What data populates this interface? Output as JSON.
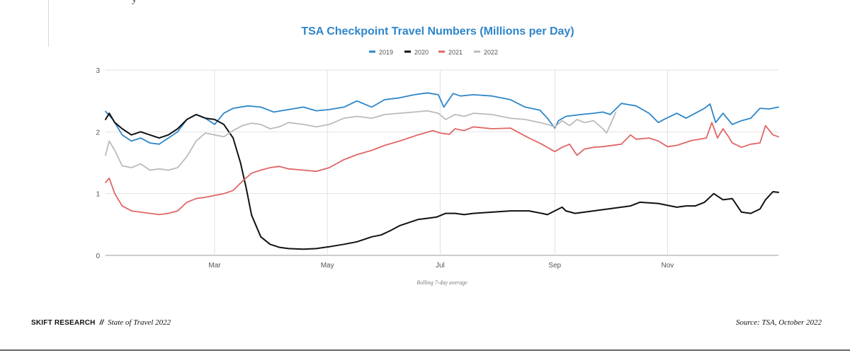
{
  "header": {
    "glyph": "y"
  },
  "chart_data": {
    "type": "line",
    "title": "TSA Checkpoint Travel Numbers (Millions per Day)",
    "note": "Rolling 7-day average",
    "ylim": [
      0,
      3
    ],
    "y_ticks": [
      "0",
      "1",
      "2",
      "3"
    ],
    "x_ticks": [
      {
        "label": "Mar",
        "day": 60
      },
      {
        "label": "May",
        "day": 121
      },
      {
        "label": "Jul",
        "day": 182
      },
      {
        "label": "Sep",
        "day": 244
      },
      {
        "label": "Nov",
        "day": 305
      }
    ],
    "x_unit": "day of year",
    "xlim": [
      1,
      365
    ],
    "grid": true,
    "legend_position": "top",
    "series": [
      {
        "name": "2019",
        "color": "#2d86c9",
        "x": [
          1,
          5,
          10,
          15,
          20,
          25,
          30,
          35,
          40,
          45,
          50,
          55,
          60,
          65,
          70,
          78,
          85,
          92,
          100,
          108,
          115,
          122,
          130,
          137,
          145,
          152,
          160,
          168,
          175,
          181,
          184,
          189,
          193,
          200,
          210,
          220,
          228,
          236,
          240,
          244,
          246,
          250,
          258,
          265,
          270,
          274,
          280,
          288,
          295,
          300,
          303,
          310,
          315,
          320,
          325,
          328,
          331,
          335,
          340,
          345,
          350,
          355,
          360,
          365
        ],
        "values": [
          2.33,
          2.2,
          1.95,
          1.85,
          1.9,
          1.82,
          1.8,
          1.9,
          2.0,
          2.2,
          2.28,
          2.22,
          2.12,
          2.3,
          2.38,
          2.42,
          2.4,
          2.32,
          2.36,
          2.4,
          2.34,
          2.36,
          2.4,
          2.5,
          2.4,
          2.52,
          2.55,
          2.6,
          2.63,
          2.6,
          2.4,
          2.62,
          2.58,
          2.6,
          2.58,
          2.52,
          2.4,
          2.35,
          2.22,
          2.06,
          2.18,
          2.25,
          2.28,
          2.3,
          2.32,
          2.28,
          2.46,
          2.42,
          2.3,
          2.15,
          2.2,
          2.3,
          2.22,
          2.3,
          2.38,
          2.45,
          2.15,
          2.3,
          2.12,
          2.18,
          2.22,
          2.38,
          2.37,
          2.4
        ]
      },
      {
        "name": "2020",
        "color": "#111111",
        "x": [
          1,
          3,
          6,
          10,
          15,
          20,
          25,
          30,
          35,
          40,
          45,
          50,
          55,
          60,
          65,
          70,
          74,
          77,
          80,
          85,
          90,
          95,
          100,
          108,
          115,
          122,
          130,
          137,
          145,
          150,
          155,
          160,
          165,
          170,
          175,
          180,
          185,
          190,
          195,
          200,
          210,
          220,
          230,
          237,
          240,
          244,
          248,
          250,
          255,
          265,
          275,
          285,
          290,
          300,
          310,
          315,
          320,
          325,
          330,
          335,
          340,
          345,
          350,
          355,
          358,
          362,
          365
        ],
        "values": [
          2.2,
          2.3,
          2.15,
          2.05,
          1.95,
          2.0,
          1.95,
          1.9,
          1.95,
          2.05,
          2.2,
          2.28,
          2.22,
          2.2,
          2.12,
          1.9,
          1.5,
          1.1,
          0.65,
          0.3,
          0.18,
          0.13,
          0.11,
          0.1,
          0.11,
          0.14,
          0.18,
          0.22,
          0.3,
          0.33,
          0.4,
          0.48,
          0.53,
          0.58,
          0.6,
          0.62,
          0.68,
          0.68,
          0.66,
          0.68,
          0.7,
          0.72,
          0.72,
          0.68,
          0.66,
          0.72,
          0.78,
          0.72,
          0.68,
          0.72,
          0.76,
          0.8,
          0.86,
          0.84,
          0.78,
          0.8,
          0.8,
          0.86,
          1.0,
          0.9,
          0.92,
          0.7,
          0.68,
          0.75,
          0.9,
          1.03,
          1.02
        ]
      },
      {
        "name": "2021",
        "color": "#e06666",
        "x": [
          1,
          3,
          6,
          10,
          15,
          20,
          25,
          30,
          35,
          40,
          45,
          50,
          55,
          60,
          65,
          70,
          75,
          80,
          85,
          90,
          95,
          100,
          108,
          115,
          122,
          130,
          137,
          145,
          152,
          160,
          170,
          178,
          182,
          187,
          190,
          195,
          200,
          210,
          220,
          230,
          237,
          244,
          248,
          252,
          256,
          260,
          265,
          270,
          280,
          285,
          288,
          295,
          300,
          305,
          310,
          318,
          326,
          329,
          332,
          335,
          338,
          340,
          345,
          350,
          355,
          358,
          362,
          365
        ],
        "values": [
          1.18,
          1.25,
          1.0,
          0.8,
          0.72,
          0.7,
          0.68,
          0.66,
          0.68,
          0.72,
          0.86,
          0.92,
          0.94,
          0.97,
          1.0,
          1.05,
          1.2,
          1.33,
          1.38,
          1.42,
          1.44,
          1.4,
          1.38,
          1.36,
          1.42,
          1.55,
          1.63,
          1.7,
          1.78,
          1.85,
          1.95,
          2.02,
          1.98,
          1.96,
          2.05,
          2.02,
          2.08,
          2.05,
          2.06,
          1.9,
          1.8,
          1.68,
          1.75,
          1.8,
          1.62,
          1.72,
          1.75,
          1.76,
          1.8,
          1.95,
          1.88,
          1.9,
          1.85,
          1.76,
          1.78,
          1.86,
          1.9,
          2.15,
          1.9,
          2.05,
          1.92,
          1.82,
          1.75,
          1.8,
          1.82,
          2.1,
          1.95,
          1.92
        ]
      },
      {
        "name": "2022",
        "color": "#bbbbbb",
        "x": [
          1,
          3,
          6,
          10,
          15,
          20,
          25,
          30,
          35,
          40,
          45,
          50,
          55,
          60,
          65,
          70,
          75,
          80,
          85,
          90,
          95,
          100,
          108,
          115,
          122,
          130,
          137,
          145,
          152,
          160,
          168,
          175,
          181,
          185,
          190,
          195,
          200,
          210,
          220,
          228,
          236,
          240,
          244,
          248,
          252,
          256,
          260,
          265,
          270,
          272,
          275,
          277
        ],
        "values": [
          1.62,
          1.85,
          1.7,
          1.45,
          1.42,
          1.48,
          1.38,
          1.4,
          1.38,
          1.42,
          1.6,
          1.85,
          1.98,
          1.95,
          1.92,
          2.02,
          2.1,
          2.14,
          2.12,
          2.05,
          2.08,
          2.15,
          2.12,
          2.08,
          2.12,
          2.22,
          2.25,
          2.22,
          2.28,
          2.3,
          2.32,
          2.34,
          2.3,
          2.2,
          2.28,
          2.25,
          2.3,
          2.28,
          2.22,
          2.2,
          2.15,
          2.12,
          2.08,
          2.18,
          2.1,
          2.2,
          2.15,
          2.18,
          2.05,
          1.98,
          2.18,
          2.32
        ]
      }
    ]
  },
  "footer": {
    "brand": "SKIFT RESEARCH",
    "separator": "//",
    "publication": "State of Travel 2022",
    "source": "Source: TSA, October 2022"
  }
}
